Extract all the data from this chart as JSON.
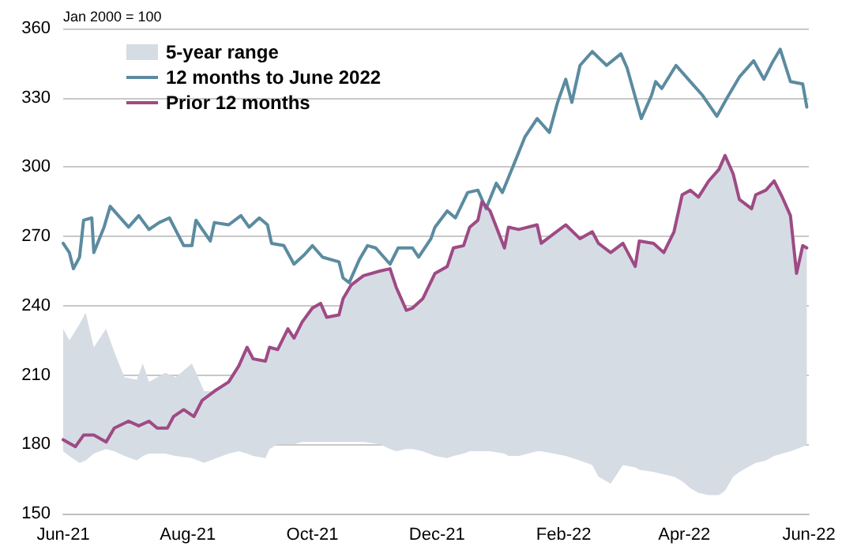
{
  "chart_data": {
    "type": "line",
    "annotations": [
      "Jan 2000 = 100"
    ],
    "xlim": [
      "2021-06-01",
      "2022-06-01"
    ],
    "xticks": [
      {
        "value": "2021-06-01",
        "label": "Jun-21"
      },
      {
        "value": "2021-08-01",
        "label": "Aug-21"
      },
      {
        "value": "2021-10-01",
        "label": "Oct-21"
      },
      {
        "value": "2021-12-01",
        "label": "Dec-21"
      },
      {
        "value": "2022-02-01",
        "label": "Feb-22"
      },
      {
        "value": "2022-04-01",
        "label": "Apr-22"
      },
      {
        "value": "2022-06-01",
        "label": "Jun-22"
      }
    ],
    "ylim": [
      150,
      360
    ],
    "yticks": [
      150,
      180,
      210,
      240,
      270,
      300,
      330,
      360
    ],
    "grid": "y",
    "legend": "top left",
    "marker": "none",
    "line_style": "solid",
    "series": [
      {
        "name": "5-year range",
        "color": "#d6dce4",
        "values": [
          null,
          null,
          null,
          null,
          null,
          null,
          null,
          null,
          null,
          null,
          null,
          null,
          null,
          null,
          null,
          null,
          null,
          null,
          null,
          null,
          null,
          null,
          null,
          null,
          null,
          null,
          null,
          null,
          null,
          null,
          null,
          null,
          null,
          null,
          null,
          null,
          null,
          null,
          null,
          null,
          null,
          null,
          null,
          null,
          null,
          null,
          null,
          null,
          null,
          null,
          null,
          null,
          null,
          null,
          null,
          null,
          null,
          null,
          null,
          null,
          null,
          null,
          null,
          null,
          null,
          null,
          null,
          null,
          null,
          null,
          null,
          null,
          null,
          null,
          null,
          null,
          null,
          null,
          null,
          null,
          null,
          null
        ],
        "x": [
          "2021-06-01",
          "2021-06-04",
          "2021-06-09",
          "2021-06-12",
          "2021-06-16",
          "2021-06-19",
          "2021-06-22",
          "2021-06-26",
          "2021-07-01",
          "2021-07-07",
          "2021-07-10",
          "2021-07-13",
          "2021-07-21",
          "2021-07-26",
          "2021-08-03",
          "2021-08-09",
          "2021-08-15",
          "2021-08-21",
          "2021-08-26",
          "2021-08-30",
          "2021-09-02",
          "2021-09-08",
          "2021-09-10",
          "2021-09-14",
          "2021-09-19",
          "2021-09-22",
          "2021-09-26",
          "2021-10-01",
          "2021-10-05",
          "2021-10-08",
          "2021-10-14",
          "2021-10-16",
          "2021-10-20",
          "2021-10-26",
          "2021-11-03",
          "2021-11-08",
          "2021-11-11",
          "2021-11-16",
          "2021-11-19",
          "2021-11-24",
          "2021-11-30",
          "2021-12-06",
          "2021-12-09",
          "2021-12-14",
          "2021-12-17",
          "2021-12-21",
          "2021-12-23",
          "2021-12-27",
          "2022-01-03",
          "2022-01-05",
          "2022-01-10",
          "2022-01-19",
          "2022-01-21",
          "2022-01-27",
          "2022-02-02",
          "2022-02-09",
          "2022-02-15",
          "2022-02-18",
          "2022-02-24",
          "2022-03-02",
          "2022-03-08",
          "2022-03-10",
          "2022-03-17",
          "2022-03-22",
          "2022-03-27",
          "2022-03-31",
          "2022-04-04",
          "2022-04-08",
          "2022-04-13",
          "2022-04-18",
          "2022-04-21",
          "2022-04-25",
          "2022-04-28",
          "2022-05-04",
          "2022-05-06",
          "2022-05-11",
          "2022-05-15",
          "2022-05-19",
          "2022-05-23",
          "2022-05-26",
          "2022-05-29",
          "2022-05-31"
        ],
        "lower": [
          177,
          175,
          172,
          173,
          176,
          177,
          178,
          177,
          175,
          173,
          175,
          176,
          176,
          175,
          174,
          172,
          174,
          176,
          177,
          176,
          175,
          174,
          178,
          180,
          180,
          180,
          181,
          181,
          181,
          181,
          181,
          181,
          181,
          181,
          180,
          178,
          177,
          178,
          178,
          177,
          175,
          174,
          175,
          176,
          177,
          177,
          177,
          177,
          176,
          175,
          175,
          177,
          177,
          176,
          175,
          173,
          171,
          166,
          163,
          171,
          170,
          169,
          168,
          167,
          166,
          164,
          161,
          159,
          158,
          158,
          160,
          166,
          168,
          171,
          172,
          173,
          175,
          176,
          177,
          178,
          179,
          180
        ],
        "upper": [
          230,
          225,
          232,
          237,
          222,
          226,
          230,
          220,
          209,
          208,
          215,
          207,
          211,
          209,
          215,
          203,
          203,
          207,
          214,
          222,
          217,
          216,
          222,
          221,
          230,
          226,
          233,
          239,
          241,
          235,
          236,
          243,
          249,
          253,
          255,
          256,
          248,
          238,
          239,
          243,
          254,
          257,
          265,
          266,
          274,
          277,
          285,
          281,
          265,
          274,
          273,
          275,
          267,
          271,
          275,
          269,
          272,
          267,
          263,
          267,
          257,
          268,
          267,
          263,
          272,
          288,
          290,
          287,
          294,
          299,
          305,
          297,
          286,
          282,
          288,
          290,
          294,
          287,
          279,
          254,
          266,
          265
        ]
      },
      {
        "name": "12 months to June 2022",
        "color": "#5b8ba0",
        "x": [
          "2021-06-01",
          "2021-06-04",
          "2021-06-06",
          "2021-06-09",
          "2021-06-11",
          "2021-06-15",
          "2021-06-16",
          "2021-06-21",
          "2021-06-24",
          "2021-06-27",
          "2021-07-03",
          "2021-07-08",
          "2021-07-13",
          "2021-07-18",
          "2021-07-23",
          "2021-07-30",
          "2021-08-03",
          "2021-08-05",
          "2021-08-12",
          "2021-08-14",
          "2021-08-21",
          "2021-08-27",
          "2021-08-31",
          "2021-09-05",
          "2021-09-09",
          "2021-09-11",
          "2021-09-17",
          "2021-09-22",
          "2021-09-27",
          "2021-10-01",
          "2021-10-06",
          "2021-10-14",
          "2021-10-16",
          "2021-10-19",
          "2021-10-24",
          "2021-10-28",
          "2021-11-01",
          "2021-11-08",
          "2021-11-12",
          "2021-11-19",
          "2021-11-22",
          "2021-11-28",
          "2021-11-30",
          "2021-12-06",
          "2021-12-10",
          "2021-12-16",
          "2021-12-21",
          "2021-12-25",
          "2021-12-30",
          "2022-01-02",
          "2022-01-08",
          "2022-01-13",
          "2022-01-19",
          "2022-01-25",
          "2022-01-29",
          "2022-02-02",
          "2022-02-05",
          "2022-02-09",
          "2022-02-15",
          "2022-02-22",
          "2022-03-01",
          "2022-03-04",
          "2022-03-11",
          "2022-03-16",
          "2022-03-18",
          "2022-03-21",
          "2022-03-28",
          "2022-04-03",
          "2022-04-10",
          "2022-04-17",
          "2022-04-22",
          "2022-04-28",
          "2022-05-05",
          "2022-05-10",
          "2022-05-14",
          "2022-05-18",
          "2022-05-23",
          "2022-05-29",
          "2022-05-31"
        ],
        "values": [
          267,
          263,
          256,
          261,
          277,
          278,
          263,
          274,
          283,
          280,
          274,
          279,
          273,
          276,
          278,
          266,
          266,
          277,
          268,
          276,
          275,
          279,
          274,
          278,
          275,
          267,
          266,
          258,
          262,
          266,
          261,
          259,
          252,
          250,
          260,
          266,
          265,
          258,
          265,
          265,
          261,
          269,
          274,
          281,
          278,
          289,
          290,
          282,
          293,
          289,
          302,
          313,
          321,
          315,
          328,
          338,
          328,
          344,
          350,
          344,
          349,
          343,
          321,
          331,
          337,
          334,
          344,
          338,
          331,
          322,
          330,
          339,
          346,
          338,
          345,
          351,
          337,
          336,
          326
        ]
      },
      {
        "name": "Prior 12 months",
        "color": "#9e4a85",
        "x": [
          "2021-06-01",
          "2021-06-07",
          "2021-06-11",
          "2021-06-16",
          "2021-06-22",
          "2021-06-26",
          "2021-07-03",
          "2021-07-08",
          "2021-07-13",
          "2021-07-17",
          "2021-07-22",
          "2021-07-25",
          "2021-07-30",
          "2021-08-04",
          "2021-08-08",
          "2021-08-14",
          "2021-08-21",
          "2021-08-26",
          "2021-08-30",
          "2021-09-02",
          "2021-09-08",
          "2021-09-10",
          "2021-09-14",
          "2021-09-19",
          "2021-09-22",
          "2021-09-26",
          "2021-10-01",
          "2021-10-05",
          "2021-10-08",
          "2021-10-14",
          "2021-10-16",
          "2021-10-20",
          "2021-10-26",
          "2021-11-03",
          "2021-11-08",
          "2021-11-11",
          "2021-11-16",
          "2021-11-19",
          "2021-11-24",
          "2021-11-30",
          "2021-12-06",
          "2021-12-09",
          "2021-12-14",
          "2021-12-17",
          "2021-12-21",
          "2021-12-23",
          "2021-12-27",
          "2022-01-03",
          "2022-01-05",
          "2022-01-10",
          "2022-01-19",
          "2022-01-21",
          "2022-01-27",
          "2022-02-02",
          "2022-02-09",
          "2022-02-15",
          "2022-02-18",
          "2022-02-24",
          "2022-03-02",
          "2022-03-08",
          "2022-03-10",
          "2022-03-17",
          "2022-03-22",
          "2022-03-27",
          "2022-03-31",
          "2022-04-04",
          "2022-04-08",
          "2022-04-13",
          "2022-04-18",
          "2022-04-21",
          "2022-04-25",
          "2022-04-28",
          "2022-05-04",
          "2022-05-06",
          "2022-05-11",
          "2022-05-15",
          "2022-05-19",
          "2022-05-23",
          "2022-05-26",
          "2022-05-29",
          "2022-05-31"
        ],
        "values": [
          182,
          179,
          184,
          184,
          181,
          187,
          190,
          188,
          190,
          187,
          187,
          192,
          195,
          192,
          199,
          203,
          207,
          214,
          222,
          217,
          216,
          222,
          221,
          230,
          226,
          233,
          239,
          241,
          235,
          236,
          243,
          249,
          253,
          255,
          256,
          248,
          238,
          239,
          243,
          254,
          257,
          265,
          266,
          274,
          277,
          285,
          281,
          265,
          274,
          273,
          275,
          267,
          271,
          275,
          269,
          272,
          267,
          263,
          267,
          257,
          268,
          267,
          263,
          272,
          288,
          290,
          287,
          294,
          299,
          305,
          297,
          286,
          282,
          288,
          290,
          294,
          287,
          279,
          254,
          266,
          265
        ]
      }
    ]
  }
}
